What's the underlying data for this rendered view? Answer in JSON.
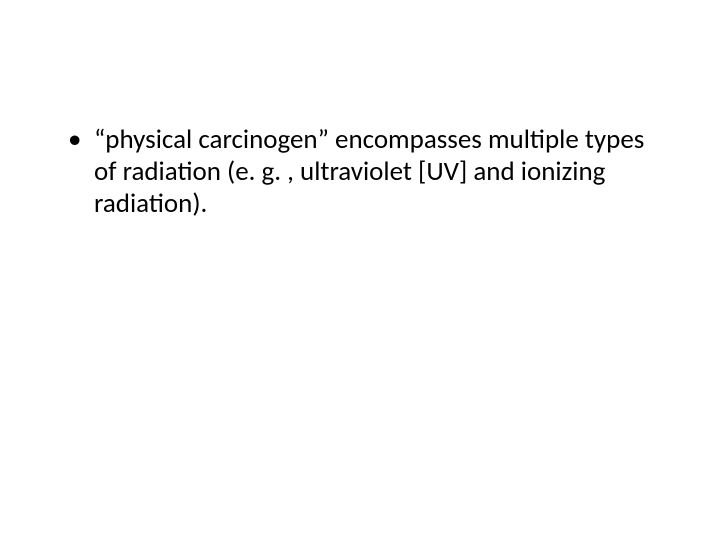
{
  "slide": {
    "background_color": "#ffffff",
    "text_color": "#000000",
    "font_family": "Calibri",
    "font_size_pt": 27,
    "bullets": [
      {
        "text": "“physical carcinogen” encompasses multiple types of radiation (e. g. , ultraviolet [UV] and ionizing radiation)."
      }
    ]
  }
}
